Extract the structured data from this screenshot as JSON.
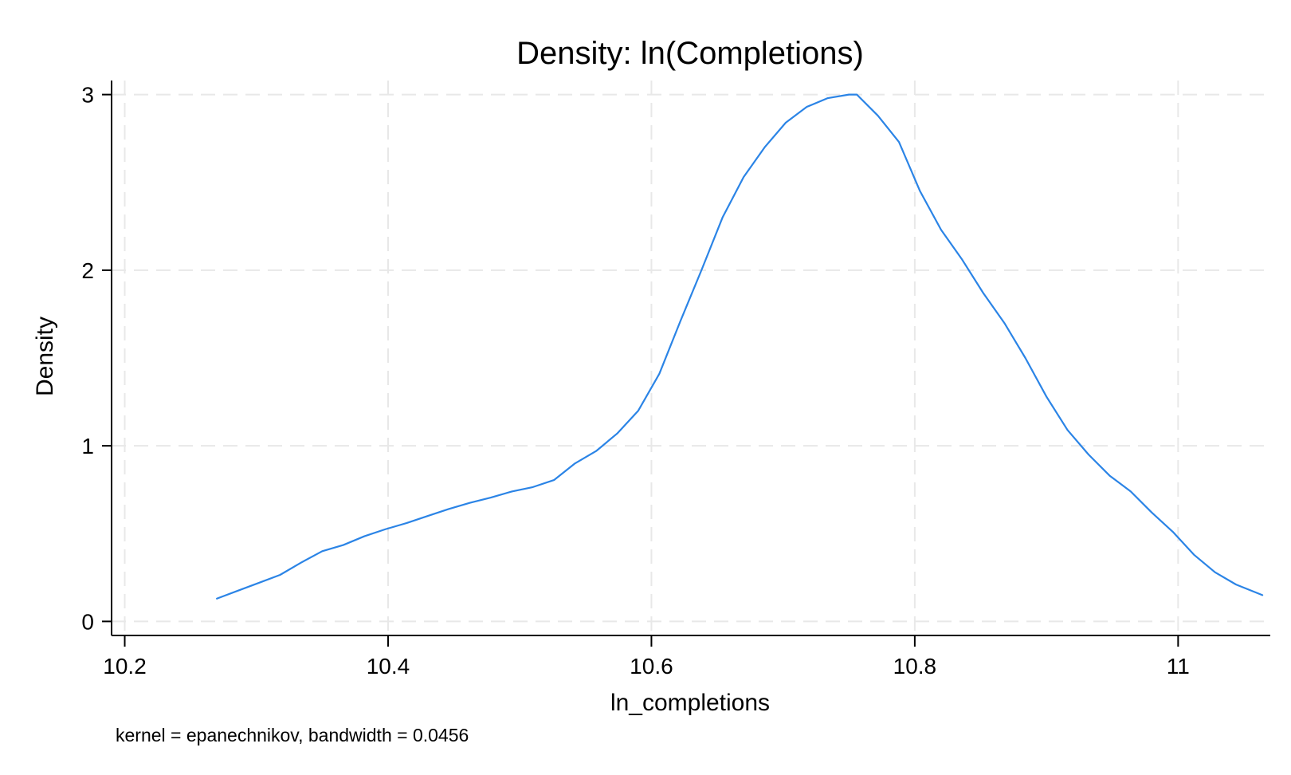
{
  "chart_data": {
    "type": "line",
    "title": "Density: ln(Completions)",
    "xlabel": "ln_completions",
    "ylabel": "Density",
    "note": "kernel = epanechnikov, bandwidth = 0.0456",
    "xlim": [
      10.19,
      11.07
    ],
    "ylim": [
      -0.08,
      3.08
    ],
    "x_ticks": [
      10.2,
      10.4,
      10.6,
      10.8,
      11
    ],
    "x_tick_labels": [
      "10.2",
      "10.4",
      "10.6",
      "10.8",
      "11"
    ],
    "y_ticks": [
      0,
      1,
      2,
      3
    ],
    "y_tick_labels": [
      "0",
      "1",
      "2",
      "3"
    ],
    "grid": true,
    "line_color": "#2b84e6",
    "series": [
      {
        "x": [
          10.27,
          10.286,
          10.302,
          10.318,
          10.334,
          10.35,
          10.366,
          10.382,
          10.398,
          10.414,
          10.43,
          10.446,
          10.462,
          10.478,
          10.494,
          10.51,
          10.526,
          10.542,
          10.558,
          10.574,
          10.59,
          10.606,
          10.622,
          10.638,
          10.654,
          10.67,
          10.686,
          10.702,
          10.718,
          10.734,
          10.75,
          10.756,
          10.772,
          10.788,
          10.804,
          10.82,
          10.836,
          10.852,
          10.868,
          10.884,
          10.9,
          10.916,
          10.932,
          10.948,
          10.964,
          10.98,
          10.996,
          11.012,
          11.028,
          11.044,
          11.064
        ],
        "y": [
          0.13,
          0.175,
          0.22,
          0.265,
          0.335,
          0.4,
          0.435,
          0.485,
          0.525,
          0.56,
          0.6,
          0.64,
          0.675,
          0.705,
          0.74,
          0.765,
          0.805,
          0.9,
          0.97,
          1.07,
          1.2,
          1.41,
          1.71,
          2.0,
          2.3,
          2.53,
          2.7,
          2.84,
          2.93,
          2.98,
          3.0,
          3.0,
          2.88,
          2.73,
          2.45,
          2.23,
          2.06,
          1.87,
          1.7,
          1.5,
          1.28,
          1.09,
          0.95,
          0.83,
          0.74,
          0.62,
          0.51,
          0.38,
          0.28,
          0.21,
          0.15
        ]
      }
    ]
  }
}
